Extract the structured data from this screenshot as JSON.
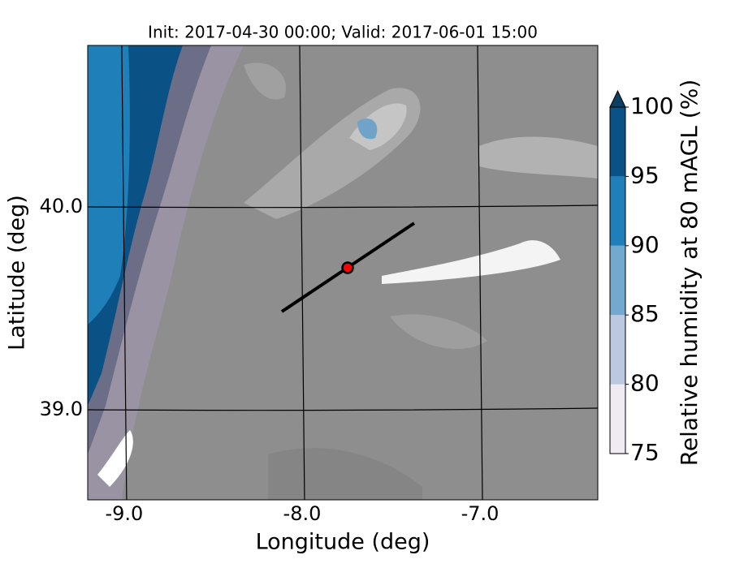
{
  "chart_data": {
    "type": "contour-map",
    "title": "Init: 2017-04-30 00:00; Valid: 2017-06-01 15:00",
    "xlabel": "Longitude (deg)",
    "ylabel": "Latitude (deg)",
    "xlim": [
      -9.205,
      -6.338
    ],
    "ylim": [
      38.556,
      40.796
    ],
    "xticks": [
      {
        "value": -9,
        "label": "-9.0"
      },
      {
        "value": -8,
        "label": "-8.0"
      },
      {
        "value": -7,
        "label": "-7.0"
      }
    ],
    "yticks": [
      {
        "value": 39,
        "label": "39.0"
      },
      {
        "value": 40,
        "label": "40.0"
      }
    ],
    "grid": true,
    "transect": {
      "x": [
        -8.114,
        -7.37
      ],
      "y": [
        39.484,
        39.92
      ],
      "color": "#000000"
    },
    "point": {
      "x": -7.744,
      "y": 39.7,
      "color": "#ff0000"
    },
    "colorbar": {
      "label": "Relative humidity at 80 mAGL (%)",
      "levels": [
        75,
        80,
        85,
        90,
        95,
        100
      ],
      "colors": [
        "#efeaf4",
        "#bcc8e0",
        "#74a9cf",
        "#1f7fb8",
        "#0a5285"
      ],
      "extend_color": "#0d3f5f",
      "ticks": [
        75,
        80,
        85,
        90,
        95,
        100
      ]
    }
  }
}
